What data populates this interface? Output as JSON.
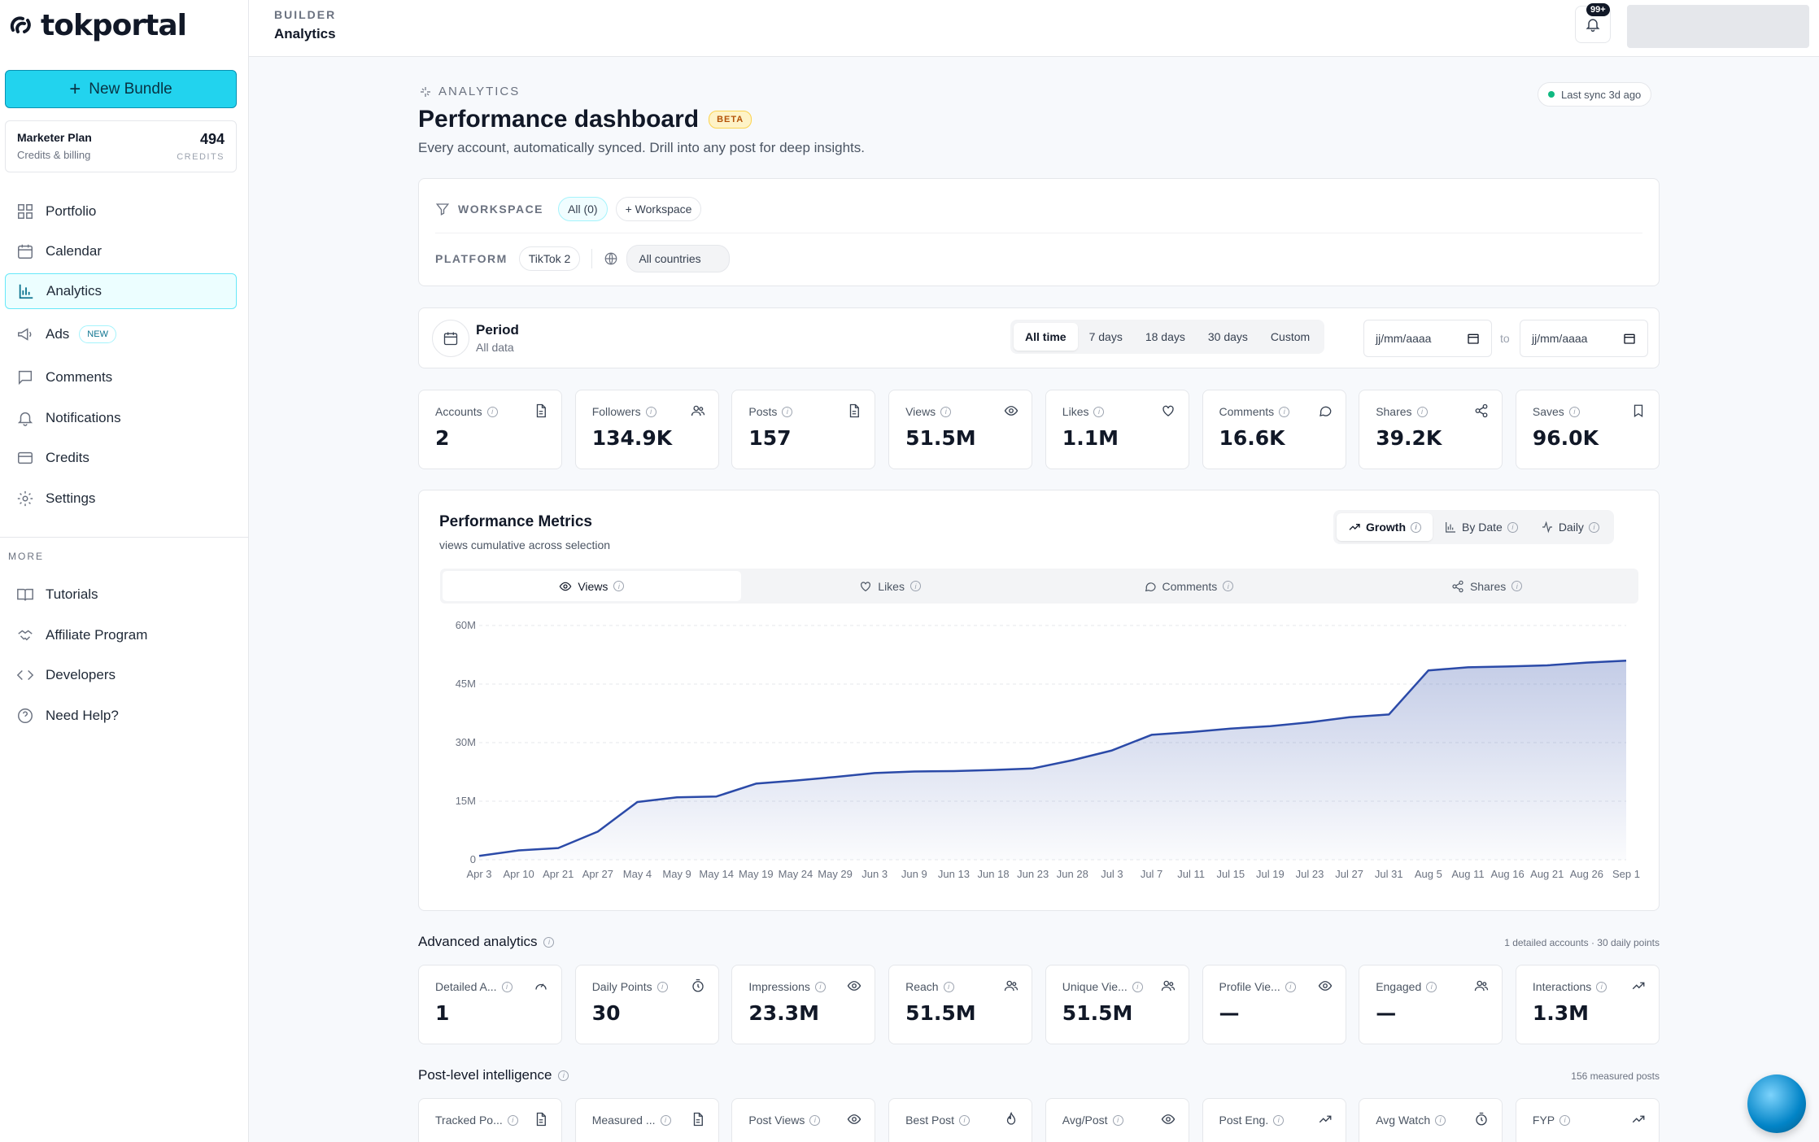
{
  "brand": {
    "name": "tokportal"
  },
  "sidebar": {
    "new_bundle_label": "New Bundle",
    "plan": {
      "name": "Marketer Plan",
      "sub": "Credits & billing",
      "credits": "494",
      "credits_label": "CREDITS"
    },
    "items": [
      {
        "label": "Portfolio",
        "icon": "grid-icon"
      },
      {
        "label": "Calendar",
        "icon": "calendar-icon"
      },
      {
        "label": "Analytics",
        "icon": "bar-chart-icon",
        "active": true
      },
      {
        "label": "Ads",
        "icon": "megaphone-icon",
        "badge": "NEW"
      },
      {
        "label": "Comments",
        "icon": "message-icon"
      },
      {
        "label": "Notifications",
        "icon": "bell-icon"
      },
      {
        "label": "Credits",
        "icon": "card-icon"
      },
      {
        "label": "Settings",
        "icon": "gear-icon"
      }
    ],
    "more_label": "MORE",
    "more_items": [
      {
        "label": "Tutorials",
        "icon": "book-icon"
      },
      {
        "label": "Affiliate Program",
        "icon": "handshake-icon"
      },
      {
        "label": "Developers",
        "icon": "code-icon"
      },
      {
        "label": "Need Help?",
        "icon": "help-icon"
      }
    ]
  },
  "topbar": {
    "crumb_top": "BUILDER",
    "crumb_main": "Analytics",
    "notif_badge": "99+"
  },
  "header": {
    "tag": "ANALYTICS",
    "title": "Performance dashboard",
    "beta": "BETA",
    "subtitle": "Every account, automatically synced. Drill into any post for deep insights.",
    "sync": "Last sync 3d ago"
  },
  "filters": {
    "workspace_label": "WORKSPACE",
    "workspace_all": "All (0)",
    "workspace_add": "+ Workspace",
    "platform_label": "PLATFORM",
    "platform_value": "TikTok 2",
    "countries": "All countries"
  },
  "period": {
    "title": "Period",
    "sub": "All data",
    "options": [
      "All time",
      "7 days",
      "18 days",
      "30 days",
      "Custom"
    ],
    "selected": "All time",
    "from_placeholder": "jj/mm/aaaa",
    "to_label": "to",
    "to_placeholder": "jj/mm/aaaa"
  },
  "stats": [
    {
      "label": "Accounts",
      "value": "2",
      "icon": "file-icon"
    },
    {
      "label": "Followers",
      "value": "134.9K",
      "icon": "users-icon"
    },
    {
      "label": "Posts",
      "value": "157",
      "icon": "file-icon"
    },
    {
      "label": "Views",
      "value": "51.5M",
      "icon": "eye-icon"
    },
    {
      "label": "Likes",
      "value": "1.1M",
      "icon": "heart-icon"
    },
    {
      "label": "Comments",
      "value": "16.6K",
      "icon": "message-icon"
    },
    {
      "label": "Shares",
      "value": "39.2K",
      "icon": "share-icon"
    },
    {
      "label": "Saves",
      "value": "96.0K",
      "icon": "bookmark-icon"
    }
  ],
  "metrics": {
    "title": "Performance Metrics",
    "subtitle": "views cumulative across selection",
    "modes": [
      "Growth",
      "By Date",
      "Daily"
    ],
    "tabs": [
      "Views",
      "Likes",
      "Comments",
      "Shares"
    ]
  },
  "chart_data": {
    "type": "area",
    "title": "",
    "xlabel": "",
    "ylabel": "",
    "ylim": [
      0,
      60000000
    ],
    "y_ticks": [
      "0",
      "15M",
      "30M",
      "45M",
      "60M"
    ],
    "x": [
      "Apr 3",
      "Apr 10",
      "Apr 21",
      "Apr 27",
      "May 4",
      "May 9",
      "May 14",
      "May 19",
      "May 24",
      "May 29",
      "Jun 3",
      "Jun 9",
      "Jun 13",
      "Jun 18",
      "Jun 23",
      "Jun 28",
      "Jul 3",
      "Jul 7",
      "Jul 11",
      "Jul 15",
      "Jul 19",
      "Jul 23",
      "Jul 27",
      "Jul 31",
      "Aug 5",
      "Aug 11",
      "Aug 16",
      "Aug 21",
      "Aug 26",
      "Sep 1"
    ],
    "series": [
      {
        "values": [
          1000000,
          2400000,
          3000000,
          7200000,
          14800000,
          16000000,
          16200000,
          19500000,
          20300000,
          21200000,
          22200000,
          22600000,
          22700000,
          23000000,
          23400000,
          25500000,
          28000000,
          32000000,
          32700000,
          33600000,
          34200000,
          35200000,
          36500000,
          37200000,
          48500000,
          49300000,
          49500000,
          49800000,
          50500000,
          51000000
        ]
      }
    ],
    "grid": true,
    "color": "#2b4aa8"
  },
  "advanced": {
    "title": "Advanced analytics",
    "right": "1 detailed accounts · 30 daily points",
    "stats": [
      {
        "label": "Detailed A...",
        "value": "1",
        "icon": "gauge-icon"
      },
      {
        "label": "Daily Points",
        "value": "30",
        "icon": "timer-icon"
      },
      {
        "label": "Impressions",
        "value": "23.3M",
        "icon": "eye-icon"
      },
      {
        "label": "Reach",
        "value": "51.5M",
        "icon": "users-icon"
      },
      {
        "label": "Unique Vie...",
        "value": "51.5M",
        "icon": "users-icon"
      },
      {
        "label": "Profile Vie...",
        "value": "—",
        "icon": "eye-icon"
      },
      {
        "label": "Engaged",
        "value": "—",
        "icon": "users-icon"
      },
      {
        "label": "Interactions",
        "value": "1.3M",
        "icon": "trend-icon"
      }
    ]
  },
  "post_level": {
    "title": "Post-level intelligence",
    "right": "156 measured posts",
    "stats": [
      {
        "label": "Tracked Po...",
        "icon": "file-icon"
      },
      {
        "label": "Measured ...",
        "icon": "file-icon"
      },
      {
        "label": "Post Views",
        "icon": "eye-icon"
      },
      {
        "label": "Best Post",
        "icon": "flame-icon"
      },
      {
        "label": "Avg/Post",
        "icon": "eye-icon"
      },
      {
        "label": "Post Eng.",
        "icon": "trend-icon"
      },
      {
        "label": "Avg Watch",
        "icon": "timer-icon"
      },
      {
        "label": "FYP",
        "icon": "trend-icon"
      }
    ]
  }
}
